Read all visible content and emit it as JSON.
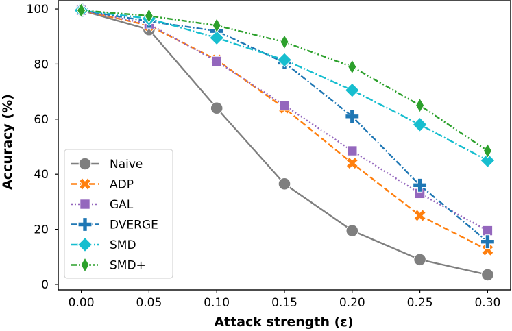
{
  "chart_data": {
    "type": "line",
    "title": "",
    "xlabel": "Attack strength (ε)",
    "ylabel": "Accuracy (%)",
    "x": [
      0.0,
      0.05,
      0.1,
      0.15,
      0.2,
      0.25,
      0.3
    ],
    "x_tick_labels": [
      "0.00",
      "0.05",
      "0.10",
      "0.15",
      "0.20",
      "0.25",
      "0.30"
    ],
    "y_ticks": [
      0,
      20,
      40,
      60,
      80,
      100
    ],
    "y_tick_labels": [
      "0",
      "20",
      "40",
      "60",
      "80",
      "100"
    ],
    "xlim": [
      -0.017,
      0.317
    ],
    "ylim": [
      -2,
      103
    ],
    "grid": false,
    "legend_position": "lower-left",
    "series": [
      {
        "name": "Naive",
        "color": "#7f7f7f",
        "marker": "circle",
        "dash": "solid",
        "values": [
          99.5,
          92.5,
          64,
          36.5,
          19.5,
          9,
          3.5
        ]
      },
      {
        "name": "ADP",
        "color": "#ff7f0e",
        "marker": "x",
        "dash": "dashed",
        "values": [
          99.5,
          94,
          81.5,
          64,
          44,
          25,
          12.5
        ]
      },
      {
        "name": "GAL",
        "color": "#9467bd",
        "marker": "square",
        "dash": "dotted",
        "values": [
          99.5,
          94.5,
          81,
          65,
          48.5,
          33,
          19.5
        ]
      },
      {
        "name": "DVERGE",
        "color": "#1f77b4",
        "marker": "plus",
        "dash": "dashdot",
        "values": [
          99.5,
          95.5,
          92,
          80.5,
          61,
          36,
          15.5
        ]
      },
      {
        "name": "SMD",
        "color": "#17becf",
        "marker": "diamond",
        "dash": "dashdot2",
        "values": [
          99.5,
          96.5,
          89.5,
          81.5,
          70.5,
          58,
          45
        ]
      },
      {
        "name": "SMD+",
        "color": "#2ca02c",
        "marker": "thindiamond",
        "dash": "dashdotdot",
        "values": [
          99.5,
          97.5,
          94,
          88,
          79,
          65,
          48.5
        ]
      }
    ]
  }
}
